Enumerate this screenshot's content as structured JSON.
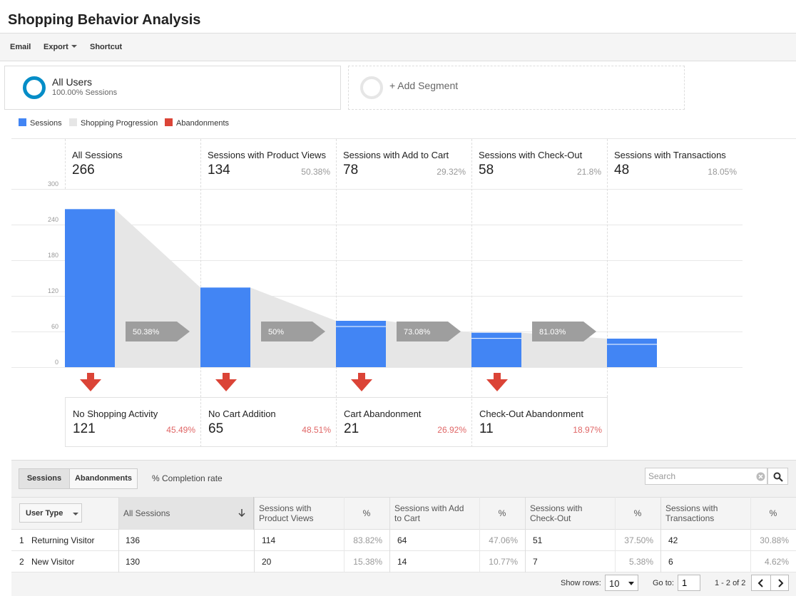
{
  "title": "Shopping Behavior Analysis",
  "toolbar": {
    "email": "Email",
    "export": "Export",
    "shortcut": "Shortcut"
  },
  "segments": [
    {
      "name": "All Users",
      "sub": "100.00% Sessions",
      "color": "#058dc7"
    },
    {
      "name": "+ Add Segment"
    }
  ],
  "legend": [
    {
      "label": "Sessions",
      "color": "#4285f4"
    },
    {
      "label": "Shopping Progression",
      "color": "#e6e6e6"
    },
    {
      "label": "Abandonments",
      "color": "#db4437"
    }
  ],
  "chart_data": {
    "type": "bar",
    "categories": [
      "All Sessions",
      "Sessions with Product Views",
      "Sessions with Add to Cart",
      "Sessions with Check-Out",
      "Sessions with Transactions"
    ],
    "values": [
      266,
      134,
      78,
      58,
      48
    ],
    "stage_pct": [
      "",
      "50.38%",
      "29.32%",
      "21.8%",
      "18.05%"
    ],
    "progression": [
      "50.38%",
      "50%",
      "73.08%",
      "81.03%"
    ],
    "yticks": [
      300,
      240,
      180,
      120,
      60,
      0
    ],
    "ylim": [
      0,
      300
    ],
    "bar_color": "#4285f4",
    "progression_color": "#e6e6e6",
    "arrow_color": "#9e9e9e",
    "abandon_color": "#db4437"
  },
  "abandonments": [
    {
      "title": "No Shopping Activity",
      "value": "121",
      "pct": "45.49%"
    },
    {
      "title": "No Cart Addition",
      "value": "65",
      "pct": "48.51%"
    },
    {
      "title": "Cart Abandonment",
      "value": "21",
      "pct": "26.92%"
    },
    {
      "title": "Check-Out Abandonment",
      "value": "11",
      "pct": "18.97%"
    }
  ],
  "table": {
    "tabs": [
      "Sessions",
      "Abandonments"
    ],
    "completion_label": "% Completion rate",
    "search_placeholder": "Search",
    "dimension": "User Type",
    "columns": [
      "All Sessions",
      "Sessions with Product Views",
      "%",
      "Sessions with Add to Cart",
      "%",
      "Sessions with Check-Out",
      "%",
      "Sessions with Transactions",
      "%"
    ],
    "rows": [
      {
        "idx": "1",
        "label": "Returning Visitor",
        "cells": [
          "136",
          "114",
          "83.82%",
          "64",
          "47.06%",
          "51",
          "37.50%",
          "42",
          "30.88%"
        ]
      },
      {
        "idx": "2",
        "label": "New Visitor",
        "cells": [
          "130",
          "20",
          "15.38%",
          "14",
          "10.77%",
          "7",
          "5.38%",
          "6",
          "4.62%"
        ]
      }
    ],
    "show_rows_label": "Show rows:",
    "show_rows_value": "10",
    "goto_label": "Go to:",
    "goto_value": "1",
    "pagination": "1 - 2 of 2"
  }
}
